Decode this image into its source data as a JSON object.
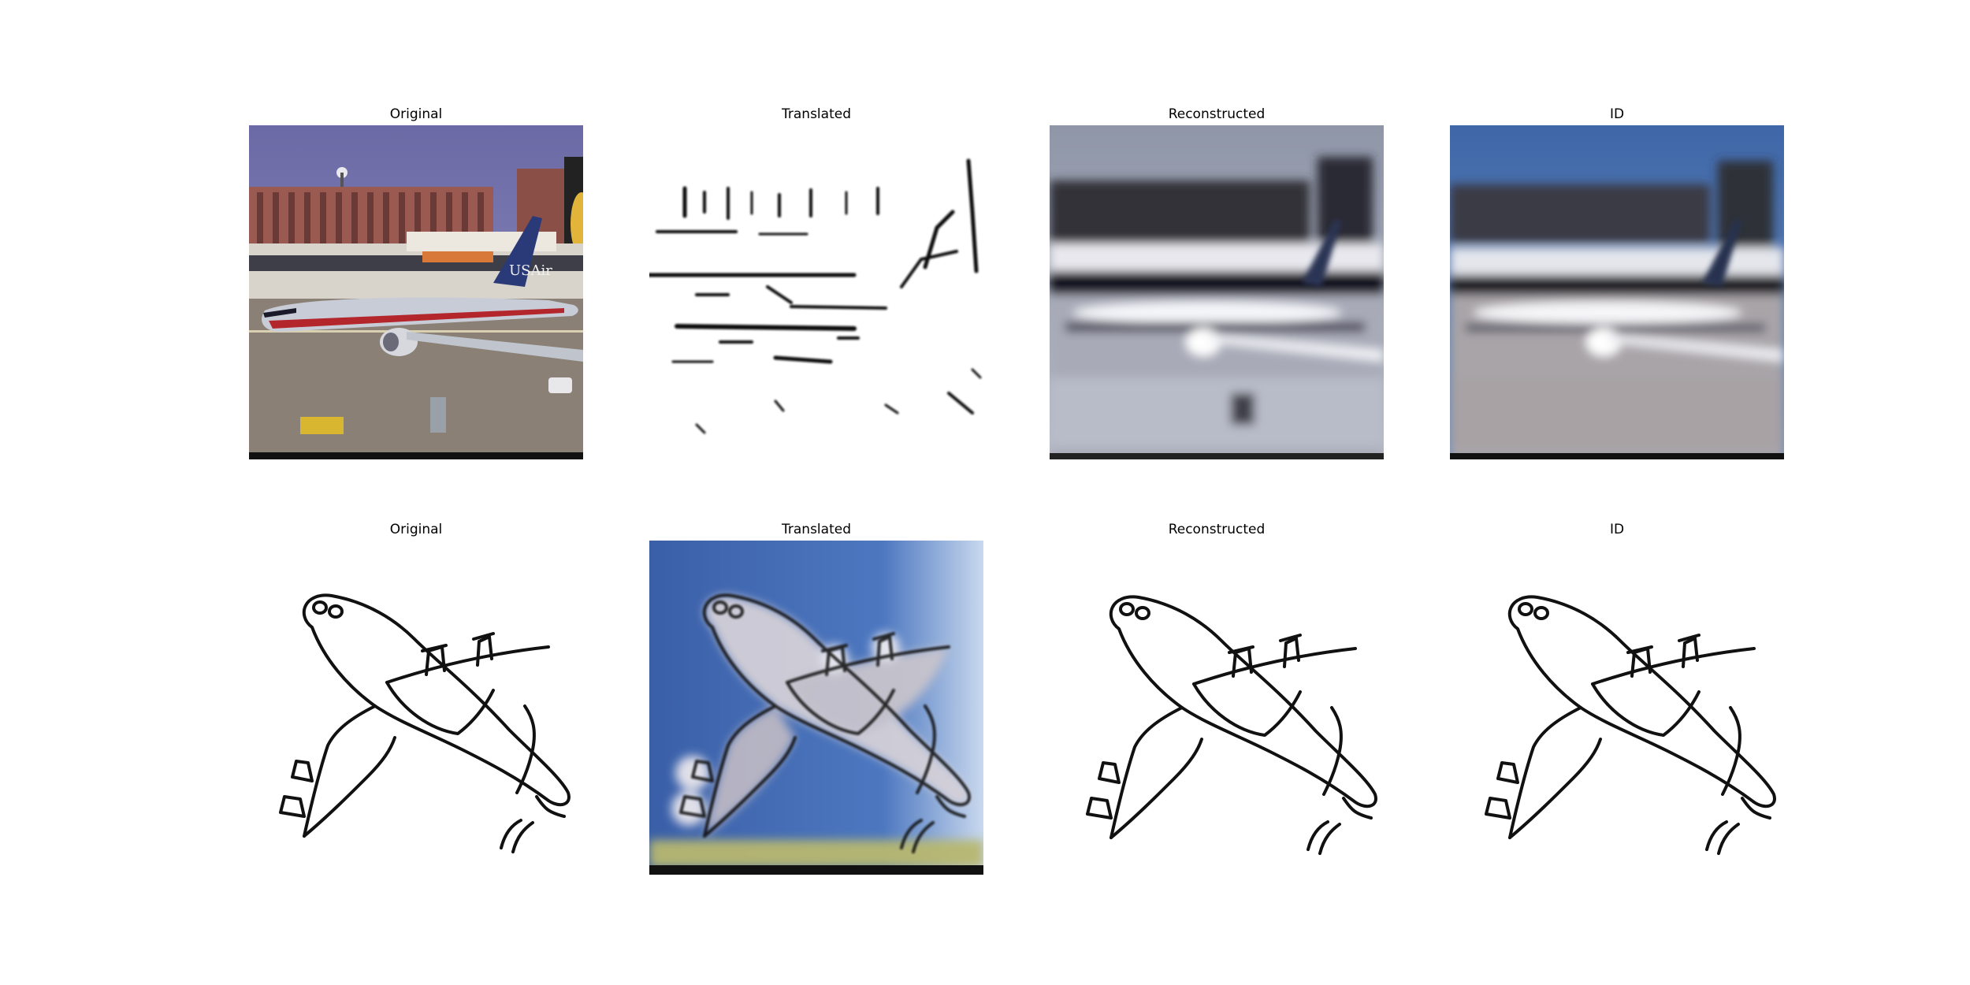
{
  "rows": [
    {
      "name": "photo-row",
      "panels": [
        {
          "title": "Original",
          "image": "airport-photo"
        },
        {
          "title": "Translated",
          "image": "edge-sketch"
        },
        {
          "title": "Reconstructed",
          "image": "blurry-airport"
        },
        {
          "title": "ID",
          "image": "blurry-airport-identity"
        }
      ]
    },
    {
      "name": "sketch-row",
      "panels": [
        {
          "title": "Original",
          "image": "airplane-sketch"
        },
        {
          "title": "Translated",
          "image": "airplane-photo-translation"
        },
        {
          "title": "Reconstructed",
          "image": "airplane-sketch-reconstructed"
        },
        {
          "title": "ID",
          "image": "airplane-sketch-identity"
        }
      ]
    }
  ],
  "colors": {
    "sky": "#6f6ea8",
    "building": "#9a5a52",
    "fuselage": "#c8ccd6",
    "stripe": "#b3262c",
    "tarmac": "#8a8075",
    "translated_sky": "#4a6fb0"
  }
}
